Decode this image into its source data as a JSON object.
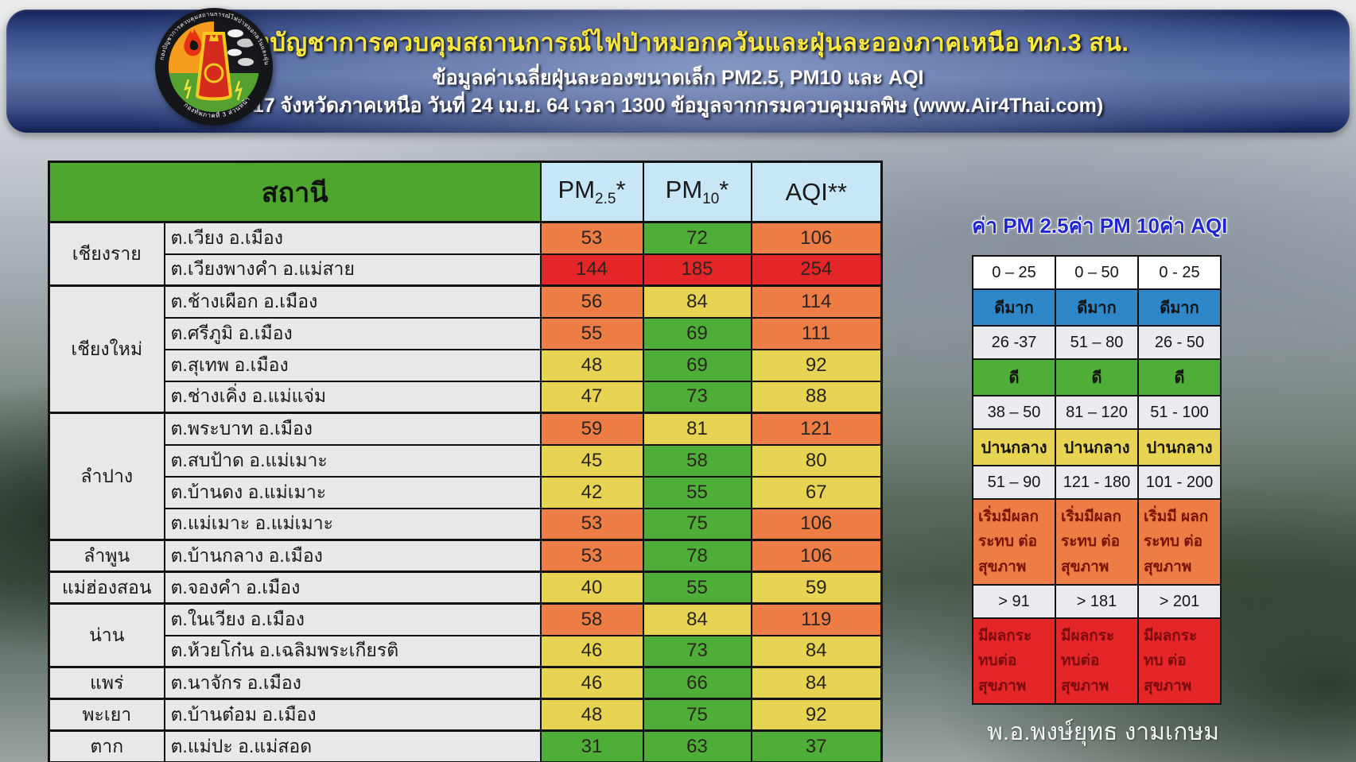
{
  "banner": {
    "title": "กองบัญชาการควบคุมสถานการณ์ไฟป่าหมอกควันและฝุ่นละอองภาคเหนือ ทภ.3 สน.",
    "subtitle1": "ข้อมูลค่าเฉลี่ยฝุ่นละอองขนาดเล็ก PM2.5, PM10 และ AQI",
    "subtitle2": "17 จังหวัดภาคเหนือ วันที่ 24 เม.ย. 64 เวลา 1300 ข้อมูลจากกรมควบคุมมลพิษ (www.Air4Thai.com)"
  },
  "logo": {
    "ring_text_top": "กองบัญชาการควบคุมสถานการณ์ไฟป่าหมอกควันและฝุ่นละอองภาคเหนือ",
    "ring_text_bottom": "กองทัพภาคที่ 3 ส่วนหน้า"
  },
  "colors": {
    "green": "#4fae37",
    "yellow": "#e7d452",
    "orange": "#ed7c45",
    "red": "#e52629",
    "blue": "#2e87c8",
    "white": "#ffffff",
    "light": "#e9ebef",
    "header_green": "#4fa62f",
    "header_blue": "#c7e7f7",
    "cell_gray": "#e8e8e8"
  },
  "main_table": {
    "header": {
      "station": "สถานี",
      "pm25": {
        "base": "PM",
        "sub": "2.5",
        "mark": "*"
      },
      "pm10": {
        "base": "PM",
        "sub": "10",
        "mark": "*"
      },
      "aqi": "AQI**"
    },
    "groups": [
      {
        "province": "เชียงราย",
        "stations": [
          {
            "name": "ต.เวียง อ.เมือง",
            "pm25": "53",
            "pm25_level": "orange",
            "pm10": "72",
            "pm10_level": "green",
            "aqi": "106",
            "aqi_level": "orange"
          },
          {
            "name": "ต.เวียงพางคำ อ.แม่สาย",
            "pm25": "144",
            "pm25_level": "red",
            "pm10": "185",
            "pm10_level": "red",
            "aqi": "254",
            "aqi_level": "red"
          }
        ]
      },
      {
        "province": "เชียงใหม่",
        "stations": [
          {
            "name": "ต.ช้างเผือก อ.เมือง",
            "pm25": "56",
            "pm25_level": "orange",
            "pm10": "84",
            "pm10_level": "yellow",
            "aqi": "114",
            "aqi_level": "orange"
          },
          {
            "name": "ต.ศรีภูมิ อ.เมือง",
            "pm25": "55",
            "pm25_level": "orange",
            "pm10": "69",
            "pm10_level": "green",
            "aqi": "111",
            "aqi_level": "orange"
          },
          {
            "name": "ต.สุเทพ อ.เมือง",
            "pm25": "48",
            "pm25_level": "yellow",
            "pm10": "69",
            "pm10_level": "green",
            "aqi": "92",
            "aqi_level": "yellow"
          },
          {
            "name": "ต.ช่างเคิ่ง อ.แม่แจ่ม",
            "pm25": "47",
            "pm25_level": "yellow",
            "pm10": "73",
            "pm10_level": "green",
            "aqi": "88",
            "aqi_level": "yellow"
          }
        ]
      },
      {
        "province": "ลำปาง",
        "stations": [
          {
            "name": "ต.พระบาท อ.เมือง",
            "pm25": "59",
            "pm25_level": "orange",
            "pm10": "81",
            "pm10_level": "yellow",
            "aqi": "121",
            "aqi_level": "orange"
          },
          {
            "name": "ต.สบป้าด อ.แม่เมาะ",
            "pm25": "45",
            "pm25_level": "yellow",
            "pm10": "58",
            "pm10_level": "green",
            "aqi": "80",
            "aqi_level": "yellow"
          },
          {
            "name": "ต.บ้านดง อ.แม่เมาะ",
            "pm25": "42",
            "pm25_level": "yellow",
            "pm10": "55",
            "pm10_level": "green",
            "aqi": "67",
            "aqi_level": "yellow"
          },
          {
            "name": "ต.แม่เมาะ อ.แม่เมาะ",
            "pm25": "53",
            "pm25_level": "orange",
            "pm10": "75",
            "pm10_level": "green",
            "aqi": "106",
            "aqi_level": "orange"
          }
        ]
      },
      {
        "province": "ลำพูน",
        "stations": [
          {
            "name": "ต.บ้านกลาง อ.เมือง",
            "pm25": "53",
            "pm25_level": "orange",
            "pm10": "78",
            "pm10_level": "green",
            "aqi": "106",
            "aqi_level": "orange"
          }
        ]
      },
      {
        "province": "แม่ฮ่องสอน",
        "stations": [
          {
            "name": "ต.จองคำ อ.เมือง",
            "pm25": "40",
            "pm25_level": "yellow",
            "pm10": "55",
            "pm10_level": "green",
            "aqi": "59",
            "aqi_level": "yellow"
          }
        ]
      },
      {
        "province": "น่าน",
        "stations": [
          {
            "name": "ต.ในเวียง อ.เมือง",
            "pm25": "58",
            "pm25_level": "orange",
            "pm10": "84",
            "pm10_level": "yellow",
            "aqi": "119",
            "aqi_level": "orange"
          },
          {
            "name": "ต.ห้วยโก๋น อ.เฉลิมพระเกียรติ",
            "pm25": "46",
            "pm25_level": "yellow",
            "pm10": "73",
            "pm10_level": "green",
            "aqi": "84",
            "aqi_level": "yellow"
          }
        ]
      },
      {
        "province": "แพร่",
        "stations": [
          {
            "name": "ต.นาจักร อ.เมือง",
            "pm25": "46",
            "pm25_level": "yellow",
            "pm10": "66",
            "pm10_level": "green",
            "aqi": "84",
            "aqi_level": "yellow"
          }
        ]
      },
      {
        "province": "พะเยา",
        "stations": [
          {
            "name": "ต.บ้านต๋อม อ.เมือง",
            "pm25": "48",
            "pm25_level": "yellow",
            "pm10": "75",
            "pm10_level": "green",
            "aqi": "92",
            "aqi_level": "yellow"
          }
        ]
      },
      {
        "province": "ตาก",
        "stations": [
          {
            "name": "ต.แม่ปะ อ.แม่สอด",
            "pm25": "31",
            "pm25_level": "green",
            "pm10": "63",
            "pm10_level": "green",
            "aqi": "37",
            "aqi_level": "green"
          }
        ]
      }
    ]
  },
  "legend": {
    "headers": [
      "ค่า PM 2.5",
      "ค่า PM 10",
      "ค่า AQI"
    ],
    "rows": [
      {
        "type": "range",
        "bg": "white",
        "cells": [
          "0 – 25",
          "0 – 50",
          "0 - 25"
        ]
      },
      {
        "type": "label",
        "bg": "blue",
        "cells": [
          "ดีมาก",
          "ดีมาก",
          "ดีมาก"
        ]
      },
      {
        "type": "range",
        "bg": "light",
        "cells": [
          "26 -37",
          "51 – 80",
          "26 - 50"
        ]
      },
      {
        "type": "label",
        "bg": "green",
        "cells": [
          "ดี",
          "ดี",
          "ดี"
        ]
      },
      {
        "type": "range",
        "bg": "light",
        "cells": [
          "38 – 50",
          "81 – 120",
          "51 - 100"
        ]
      },
      {
        "type": "label",
        "bg": "yellow",
        "cells": [
          "ปานกลาง",
          "ปานกลาง",
          "ปานกลาง"
        ]
      },
      {
        "type": "range",
        "bg": "light",
        "cells": [
          "51 – 90",
          "121 - 180",
          "101 - 200"
        ]
      },
      {
        "type": "big",
        "bg": "orange",
        "text_color": "#7a1506",
        "cells": [
          "เริ่มมีผลกระทบ ต่อสุขภาพ",
          "เริ่มมีผลกระทบ ต่อสุขภาพ",
          "เริ่มมี ผลกระทบ ต่อสุขภาพ"
        ]
      },
      {
        "type": "range",
        "bg": "light",
        "cells": [
          "> 91",
          "> 181",
          "> 201"
        ]
      },
      {
        "type": "big",
        "bg": "red",
        "text_color": "#7d0c0c",
        "cells": [
          "มีผลกระทบต่อ สุขภาพ",
          "มีผลกระทบต่อ สุขภาพ",
          "มีผลกระทบ ต่อสุขภาพ"
        ]
      }
    ]
  },
  "signature": "พ.อ.พงษ์ยุทธ  งามเกษม"
}
